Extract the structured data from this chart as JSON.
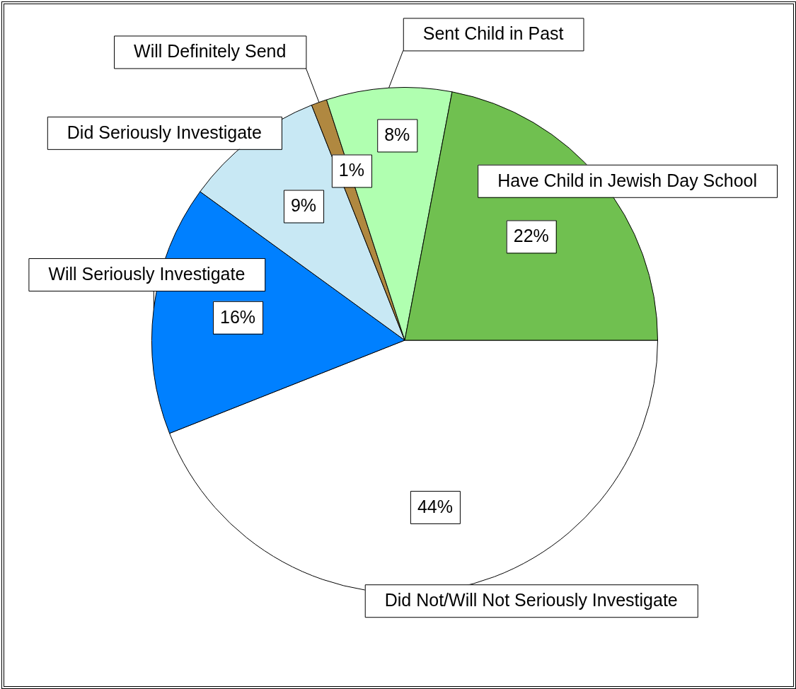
{
  "chart_data": {
    "type": "pie",
    "categories": [
      "Did Not/Will Not Seriously Investigate",
      "Will Seriously Investigate",
      "Did Seriously Investigate",
      "Will Definitely Send",
      "Sent Child in Past",
      "Have Child in Jewish Day School"
    ],
    "values": [
      44,
      16,
      9,
      1,
      8,
      22
    ],
    "value_labels": [
      "44%",
      "16%",
      "9%",
      "1%",
      "8%",
      "22%"
    ],
    "colors": [
      "#ffffff",
      "#0080ff",
      "#c8e8f4",
      "#b08840",
      "#b0ffb0",
      "#70c050"
    ],
    "legend": false
  }
}
